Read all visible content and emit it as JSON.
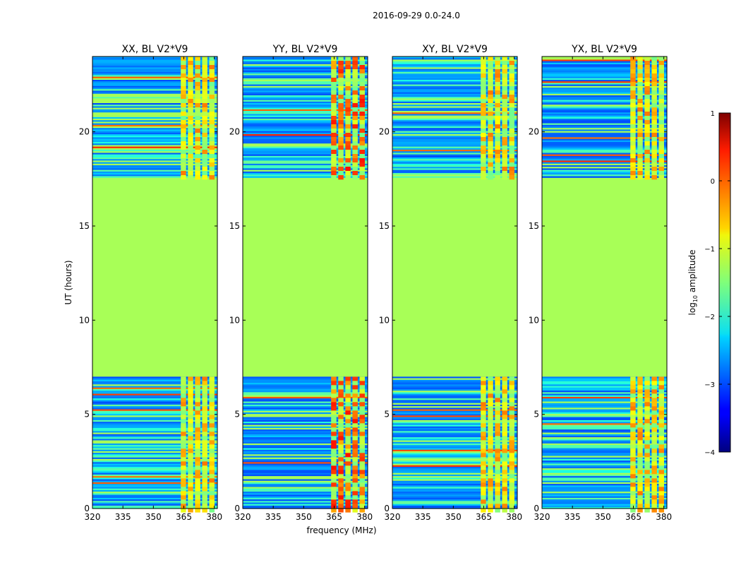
{
  "figure": {
    "suptitle": "2016-09-29 0.0-24.0",
    "shared_xlabel": "frequency (MHz)",
    "shared_ylabel": "UT (hours)"
  },
  "chart_data": [
    {
      "type": "heatmap",
      "title": "XX, BL V2*V9",
      "xlabel": "frequency (MHz)",
      "ylabel": "UT (hours)",
      "xlim": [
        320,
        381.5
      ],
      "ylim": [
        0,
        24
      ],
      "xticks": [
        320,
        335,
        350,
        365,
        380
      ],
      "yticks": [
        0,
        5,
        10,
        15,
        20
      ],
      "value_range": [
        -4,
        1
      ],
      "colormap": "jet",
      "regions": [
        {
          "t_start": 0.0,
          "t_end": 7.0,
          "state": "noisy",
          "note": "low-amplitude noise with bright RFI at 363-379 MHz"
        },
        {
          "t_start": 7.0,
          "t_end": 17.6,
          "state": "flagged",
          "value": -1.3
        },
        {
          "t_start": 17.6,
          "t_end": 24.0,
          "state": "noisy",
          "note": "low-amplitude noise with bright RFI at 363-379 MHz"
        }
      ]
    },
    {
      "type": "heatmap",
      "title": "YY, BL V2*V9",
      "xlabel": "frequency (MHz)",
      "ylabel": "UT (hours)",
      "xlim": [
        320,
        381.5
      ],
      "ylim": [
        0,
        24
      ],
      "xticks": [
        320,
        335,
        350,
        365,
        380
      ],
      "yticks": [
        0,
        5,
        10,
        15,
        20
      ],
      "value_range": [
        -4,
        1
      ],
      "colormap": "jet",
      "regions": [
        {
          "t_start": 0.0,
          "t_end": 7.0,
          "state": "noisy",
          "note": "strong RFI (up to ~0.3) at 363-379 MHz"
        },
        {
          "t_start": 7.0,
          "t_end": 17.6,
          "state": "flagged",
          "value": -1.3
        },
        {
          "t_start": 17.6,
          "t_end": 24.0,
          "state": "noisy",
          "note": "strong RFI (up to ~0.3) at 363-379 MHz"
        }
      ]
    },
    {
      "type": "heatmap",
      "title": "XY, BL V2*V9",
      "xlabel": "frequency (MHz)",
      "ylabel": "UT (hours)",
      "xlim": [
        320,
        381.5
      ],
      "ylim": [
        0,
        24
      ],
      "xticks": [
        320,
        335,
        350,
        365,
        380
      ],
      "yticks": [
        0,
        5,
        10,
        15,
        20
      ],
      "value_range": [
        -4,
        1
      ],
      "colormap": "jet",
      "regions": [
        {
          "t_start": 0.0,
          "t_end": 7.0,
          "state": "noisy",
          "note": "noise with RFI at 363-379 MHz"
        },
        {
          "t_start": 7.0,
          "t_end": 17.6,
          "state": "flagged",
          "value": -1.3
        },
        {
          "t_start": 17.6,
          "t_end": 24.0,
          "state": "noisy",
          "note": "noise with RFI at 363-379 MHz"
        }
      ]
    },
    {
      "type": "heatmap",
      "title": "YX, BL V2*V9",
      "xlabel": "frequency (MHz)",
      "ylabel": "UT (hours)",
      "xlim": [
        320,
        381.5
      ],
      "ylim": [
        0,
        24
      ],
      "xticks": [
        320,
        335,
        350,
        365,
        380
      ],
      "yticks": [
        0,
        5,
        10,
        15,
        20
      ],
      "value_range": [
        -4,
        1
      ],
      "colormap": "jet",
      "regions": [
        {
          "t_start": 0.0,
          "t_end": 7.0,
          "state": "noisy",
          "note": "noise with RFI at 363-379 MHz"
        },
        {
          "t_start": 7.0,
          "t_end": 17.6,
          "state": "flagged",
          "value": -1.3
        },
        {
          "t_start": 17.6,
          "t_end": 24.0,
          "state": "noisy",
          "note": "noise with RFI at 363-379 MHz"
        }
      ]
    }
  ],
  "colorbar": {
    "label_prefix": "log",
    "label_subscript": "10",
    "label_suffix": " amplitude",
    "ticks": [
      "1",
      "0",
      "−1",
      "−2",
      "−3",
      "−4"
    ],
    "tick_values": [
      1,
      0,
      -1,
      -2,
      -3,
      -4
    ],
    "range": [
      -4,
      1
    ],
    "colormap": "jet"
  }
}
